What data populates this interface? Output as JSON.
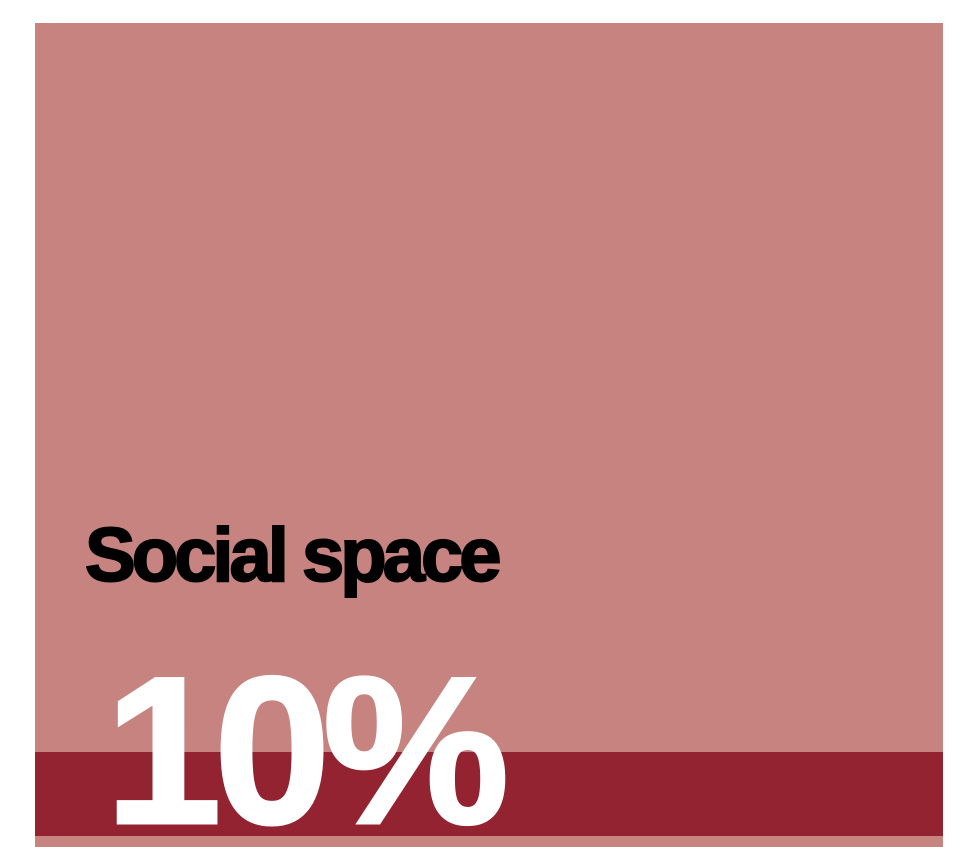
{
  "stat": {
    "label": "Social space",
    "value": "10%",
    "level_percent": 10
  },
  "colors": {
    "panel": "#c78380",
    "band": "#942331",
    "label": "#000000",
    "value": "#ffffff",
    "page": "#ffffff"
  }
}
